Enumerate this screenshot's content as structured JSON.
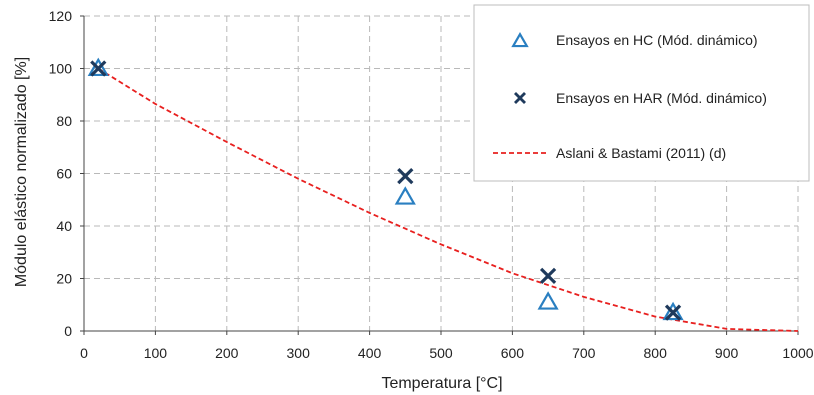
{
  "chart_data": {
    "type": "scatter",
    "xlabel": "Temperatura [°C]",
    "ylabel": "Módulo elástico normalizado [%]",
    "xlim": [
      0,
      1000
    ],
    "ylim": [
      0,
      120
    ],
    "xticks": [
      0,
      100,
      200,
      300,
      400,
      500,
      600,
      700,
      800,
      900,
      1000
    ],
    "yticks": [
      0,
      20,
      40,
      60,
      80,
      100,
      120
    ],
    "grid": true,
    "legend_position": "top-right",
    "series": [
      {
        "name": "Ensayos en HC (Mód. dinámico)",
        "kind": "scatter",
        "marker": "triangle",
        "color": "#2a7fc1",
        "x": [
          20,
          450,
          650,
          825
        ],
        "y": [
          100,
          51,
          11,
          7
        ]
      },
      {
        "name": "Ensayos en HAR (Mód. dinámico)",
        "kind": "scatter",
        "marker": "x",
        "color": "#1f3a5c",
        "x": [
          20,
          450,
          650,
          825
        ],
        "y": [
          100,
          59,
          21,
          7
        ]
      },
      {
        "name": "Aslani & Bastami (2011) (d)",
        "kind": "line",
        "dashed": true,
        "color": "#e8201f",
        "x": [
          20,
          100,
          200,
          300,
          400,
          500,
          600,
          700,
          800,
          900,
          1000
        ],
        "y": [
          100,
          86.5,
          72,
          58,
          45,
          33,
          22,
          13,
          5.5,
          0.8,
          0
        ]
      }
    ]
  }
}
